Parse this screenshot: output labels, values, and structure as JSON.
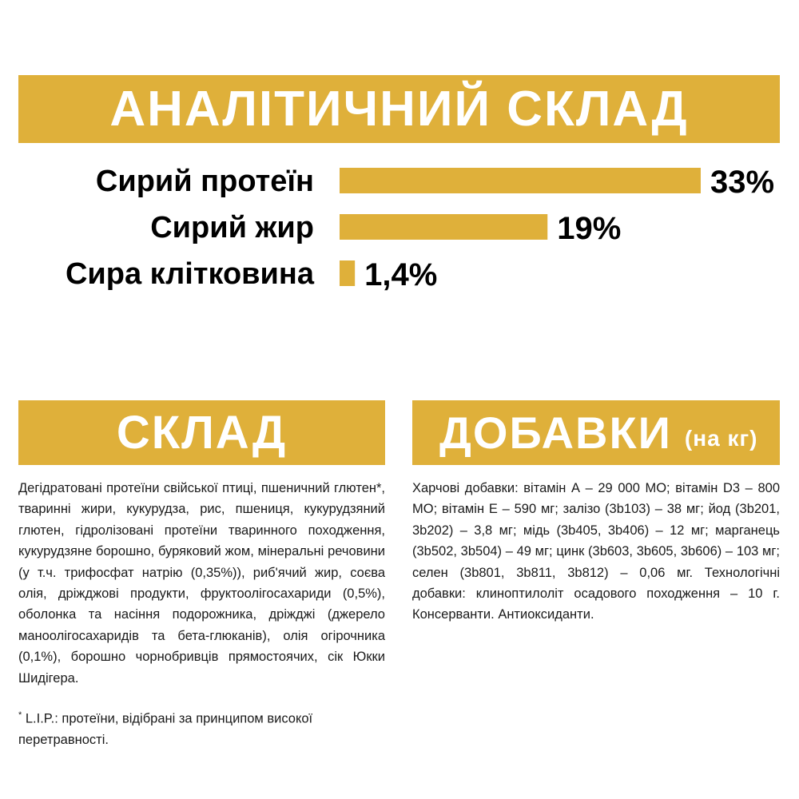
{
  "analytic": {
    "title": "АНАЛІТИЧНИЙ СКЛАД"
  },
  "chart_data": {
    "type": "bar",
    "orientation": "horizontal",
    "categories": [
      "Сирий протеїн",
      "Сирий жир",
      "Сира клітковина"
    ],
    "values": [
      33,
      19,
      1.4
    ],
    "value_labels": [
      "33%",
      "19%",
      "1,4%"
    ],
    "unit": "%",
    "bar_color": "#dfb03a",
    "grid": false,
    "xlim": [
      0,
      33
    ]
  },
  "composition": {
    "title": "СКЛАД",
    "text": "Дегідратовані протеїни свійської птиці, пшеничний глютен*, тваринні жири, кукурудза, рис, пшениця, кукурудзяний глютен, гідролізовані протеїни тваринного походження, кукурудзяне борошно, буряковий жом, мінеральні речовини (у т.ч. трифосфат натрію (0,35%)), риб'ячий жир, соєва олія, дріжджові продукти, фруктоолігосахариди (0,5%), оболонка та насіння подорожника, дріжджі (джерело маноолігосахаридів та бета-глюканів), олія огірочника (0,1%), борошно чорнобривців прямостоячих, сік Юкки Шидігера.",
    "note_mark": "*",
    "note": " L.I.P.: протеїни, відібрані за принципом високої перетравності."
  },
  "additives": {
    "title": "ДОБАВКИ",
    "unit": "(на кг)",
    "text": "Харчові добавки: вітамін А – 29 000 МО; вітамін D3 – 800 МО; вітамін Е – 590 мг; залізо (3b103) – 38 мг; йод (3b201, 3b202) – 3,8 мг; мідь (3b405, 3b406) – 12 мг; марганець (3b502, 3b504) – 49 мг; цинк (3b603, 3b605, 3b606) – 103 мг; селен (3b801, 3b811, 3b812) – 0,06 мг. Технологічні добавки: клиноптилоліт осадового походження – 10 г. Консерванти. Антиоксиданти."
  },
  "colors": {
    "accent": "#dfb03a",
    "banner_text": "#ffffff"
  }
}
